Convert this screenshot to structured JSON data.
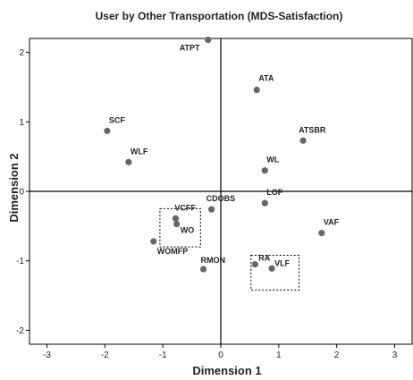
{
  "chart_data": {
    "type": "scatter",
    "title": "User by Other Transportation (MDS-Satisfaction)",
    "xlabel": "Dimension 1",
    "ylabel": "Dimension 2",
    "xlim": [
      -3.3,
      3.3
    ],
    "ylim": [
      -2.2,
      2.2
    ],
    "xticks": [
      -3,
      -2,
      -1,
      0,
      1,
      2,
      3
    ],
    "yticks": [
      -2,
      -1,
      0,
      1,
      2
    ],
    "grid": false,
    "point_color": "#666666",
    "points": [
      {
        "label": "ATPT",
        "x": -0.22,
        "y": 2.18
      },
      {
        "label": "ATA",
        "x": 0.62,
        "y": 1.46
      },
      {
        "label": "SCF",
        "x": -1.96,
        "y": 0.87
      },
      {
        "label": "ATSBR",
        "x": 1.42,
        "y": 0.73
      },
      {
        "label": "WLF",
        "x": -1.59,
        "y": 0.42
      },
      {
        "label": "WL",
        "x": 0.76,
        "y": 0.3
      },
      {
        "label": "LOF",
        "x": 0.76,
        "y": -0.17
      },
      {
        "label": "CDOBS",
        "x": -0.16,
        "y": -0.26
      },
      {
        "label": "VCFF",
        "x": -0.78,
        "y": -0.39
      },
      {
        "label": "WO",
        "x": -0.76,
        "y": -0.47
      },
      {
        "label": "VAF",
        "x": 1.74,
        "y": -0.6
      },
      {
        "label": "WOMFP",
        "x": -1.16,
        "y": -0.72
      },
      {
        "label": "RA",
        "x": 0.59,
        "y": -1.05
      },
      {
        "label": "VLF",
        "x": 0.88,
        "y": -1.11
      },
      {
        "label": "RMON",
        "x": -0.3,
        "y": -1.12
      }
    ],
    "annotation_boxes": [
      {
        "name": "left-cluster-box",
        "x0": -1.05,
        "x1": -0.35,
        "y0": -0.25,
        "y1": -0.8
      },
      {
        "name": "right-cluster-box",
        "x0": 0.52,
        "x1": 1.35,
        "y0": -0.92,
        "y1": -1.42
      }
    ]
  }
}
